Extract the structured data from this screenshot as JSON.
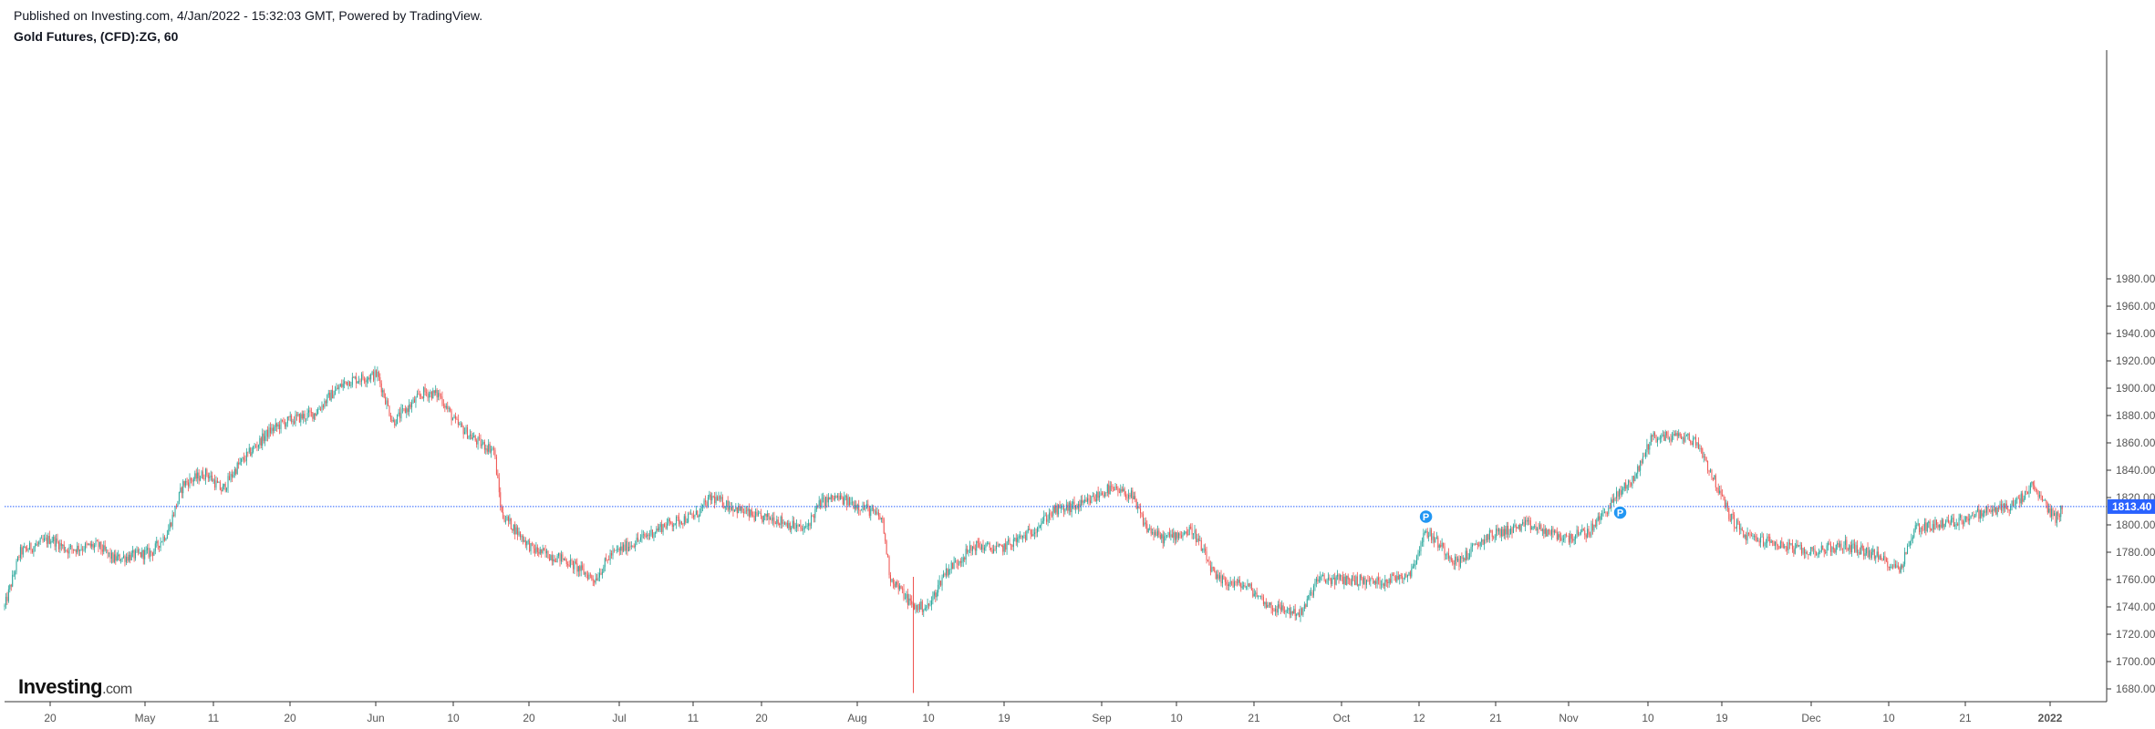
{
  "header": {
    "published": "Published on Investing.com, 4/Jan/2022 - 15:32:03 GMT, Powered by TradingView.",
    "symbol": "Gold Futures, (CFD):ZG, 60"
  },
  "logo": {
    "brand": "Investing",
    "suffix": ".com"
  },
  "colors": {
    "up": "#26a69a",
    "down": "#ef5350",
    "price_line": "#2962ff",
    "price_tag": "#2962ff",
    "marker": "#2196f3",
    "axis": "#333333",
    "text": "#555555"
  },
  "chart_data": {
    "type": "line",
    "title": "Gold Futures, (CFD):ZG, 60",
    "style": "candlestick (hourly)",
    "ylim": [
      1670,
      1990
    ],
    "y_ticks": [
      "1680.00",
      "1700.00",
      "1720.00",
      "1740.00",
      "1760.00",
      "1780.00",
      "1800.00",
      "1820.00",
      "1840.00",
      "1860.00",
      "1880.00",
      "1900.00",
      "1920.00",
      "1940.00",
      "1960.00",
      "1980.00"
    ],
    "x_ticks": [
      "20",
      "May",
      "11",
      "20",
      "Jun",
      "10",
      "20",
      "Jul",
      "11",
      "20",
      "Aug",
      "10",
      "19",
      "Sep",
      "10",
      "21",
      "Oct",
      "12",
      "21",
      "Nov",
      "10",
      "19",
      "Dec",
      "10",
      "21",
      "2022"
    ],
    "last_price": "1813.40",
    "grid": false,
    "series": [
      {
        "x": [
          "2021-04-14",
          "2021-04-16",
          "2021-04-20",
          "2021-04-22",
          "2021-04-26",
          "2021-04-28",
          "2021-05-03",
          "2021-05-05",
          "2021-05-07",
          "2021-05-10",
          "2021-05-12",
          "2021-05-14",
          "2021-05-18",
          "2021-05-20",
          "2021-05-24",
          "2021-05-26",
          "2021-05-28",
          "2021-06-01",
          "2021-06-03",
          "2021-06-07",
          "2021-06-09",
          "2021-06-11",
          "2021-06-14",
          "2021-06-16",
          "2021-06-17",
          "2021-06-21",
          "2021-06-23",
          "2021-06-25",
          "2021-06-29",
          "2021-07-01",
          "2021-07-05",
          "2021-07-08",
          "2021-07-12",
          "2021-07-14",
          "2021-07-16",
          "2021-07-20",
          "2021-07-22",
          "2021-07-26",
          "2021-07-28",
          "2021-07-30",
          "2021-08-03",
          "2021-08-05",
          "2021-08-06",
          "2021-08-09",
          "2021-08-11",
          "2021-08-13",
          "2021-08-17",
          "2021-08-20",
          "2021-08-24",
          "2021-08-27",
          "2021-08-31",
          "2021-09-03",
          "2021-09-06",
          "2021-09-08",
          "2021-09-10",
          "2021-09-14",
          "2021-09-17",
          "2021-09-21",
          "2021-09-24",
          "2021-09-28",
          "2021-09-30",
          "2021-10-04",
          "2021-10-08",
          "2021-10-12",
          "2021-10-14",
          "2021-10-18",
          "2021-10-22",
          "2021-10-27",
          "2021-11-01",
          "2021-11-04",
          "2021-11-08",
          "2021-11-10",
          "2021-11-12",
          "2021-11-16",
          "2021-11-18",
          "2021-11-22",
          "2021-11-24",
          "2021-11-29",
          "2021-12-02",
          "2021-12-07",
          "2021-12-10",
          "2021-12-14",
          "2021-12-16",
          "2021-12-21",
          "2021-12-24",
          "2021-12-29",
          "2021-12-31",
          "2022-01-03",
          "2022-01-04"
        ],
        "values": [
          1740,
          1780,
          1790,
          1782,
          1785,
          1775,
          1780,
          1795,
          1830,
          1838,
          1825,
          1843,
          1868,
          1875,
          1882,
          1895,
          1905,
          1910,
          1875,
          1897,
          1895,
          1875,
          1860,
          1855,
          1808,
          1782,
          1778,
          1775,
          1760,
          1778,
          1790,
          1800,
          1807,
          1820,
          1815,
          1805,
          1805,
          1796,
          1816,
          1820,
          1812,
          1804,
          1762,
          1740,
          1740,
          1765,
          1785,
          1782,
          1794,
          1810,
          1815,
          1826,
          1822,
          1798,
          1790,
          1796,
          1760,
          1755,
          1740,
          1735,
          1760,
          1760,
          1758,
          1765,
          1796,
          1772,
          1792,
          1800,
          1790,
          1795,
          1824,
          1836,
          1864,
          1865,
          1860,
          1808,
          1792,
          1785,
          1780,
          1785,
          1780,
          1768,
          1798,
          1802,
          1808,
          1815,
          1828,
          1805,
          1813
        ]
      }
    ]
  },
  "markers": [
    {
      "label": "P",
      "x": "2021-10-14",
      "y": 1810
    },
    {
      "label": "P",
      "x": "2021-11-08",
      "y": 1813
    }
  ]
}
